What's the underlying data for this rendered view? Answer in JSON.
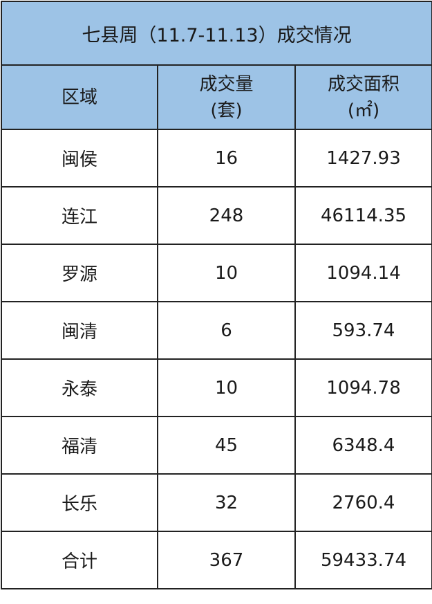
{
  "title": "七县周（11.7-11.13）成交情况",
  "header": {
    "region": "区域",
    "volume_line1": "成交量",
    "volume_line2": "(套)",
    "area_line1": "成交面积",
    "area_line2": "(㎡)"
  },
  "colors": {
    "header_bg": "#9dc3e6"
  },
  "rows": [
    {
      "region": "闽侯",
      "volume": "16",
      "area": "1427.93"
    },
    {
      "region": "连江",
      "volume": "248",
      "area": "46114.35"
    },
    {
      "region": "罗源",
      "volume": "10",
      "area": "1094.14"
    },
    {
      "region": "闽清",
      "volume": "6",
      "area": "593.74"
    },
    {
      "region": "永泰",
      "volume": "10",
      "area": "1094.78"
    },
    {
      "region": "福清",
      "volume": "45",
      "area": "6348.4"
    },
    {
      "region": "长乐",
      "volume": "32",
      "area": "2760.4"
    },
    {
      "region": "合计",
      "volume": "367",
      "area": "59433.74"
    }
  ]
}
